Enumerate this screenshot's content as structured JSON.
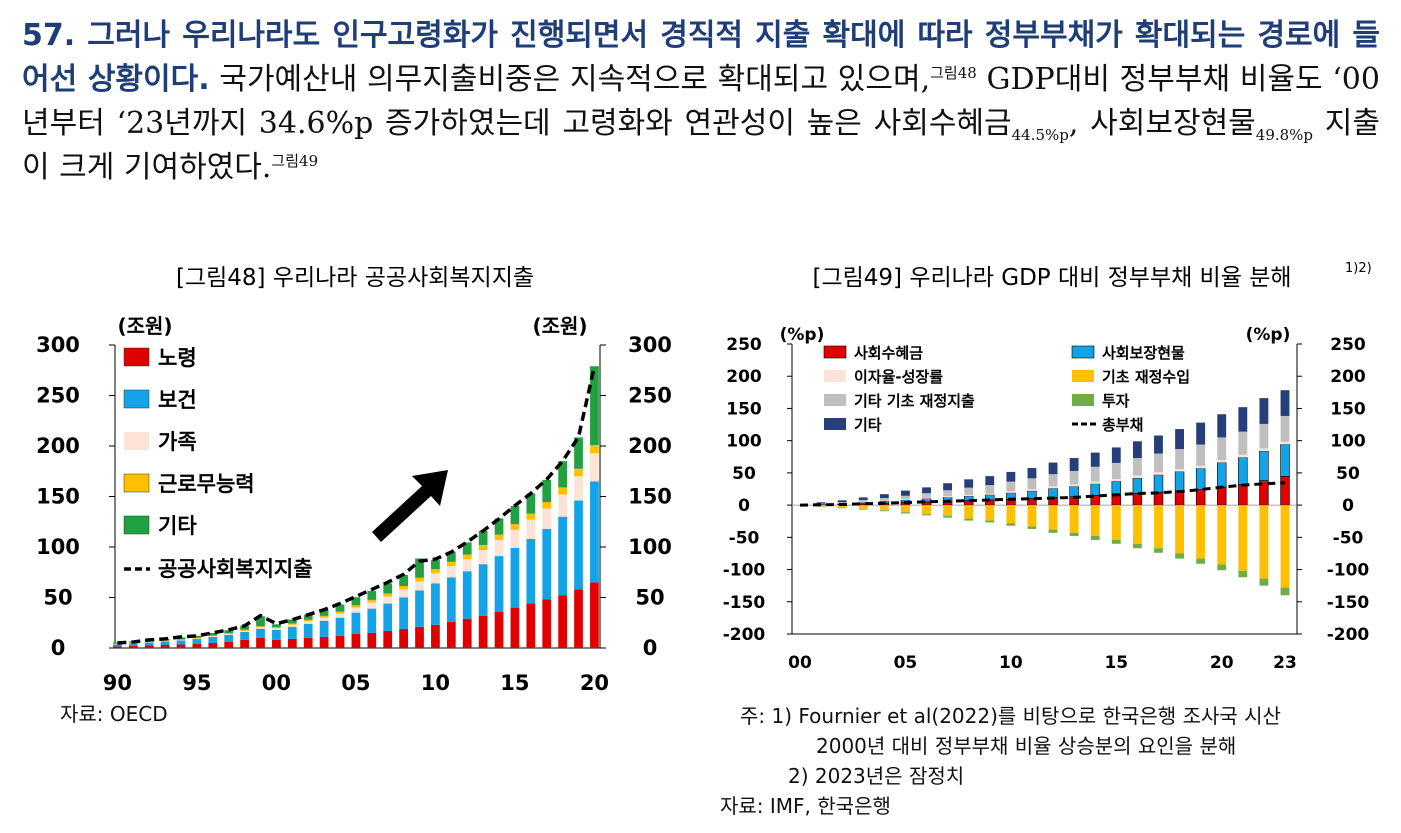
{
  "paragraph": {
    "lead": "57. 그러나 우리나라도 인구고령화가 진행되면서 경직적 지출 확대에 따라 정부부채가 확대되는 경로에 들어선 상황이다.",
    "t1": " 국가예산내 의무지출비중은 지속적으로 확대되고 있으며,",
    "ref48": "그림48",
    "t2": " GDP대비 정부부채 비율도 ‘00년부터 ‘23년까지 34.6%p 증가하였는데 고령화와 연관성이 높은 사회수혜금",
    "sub1": "44.5%p",
    "t3": ", 사회보장현물",
    "sub2": "49.8%p",
    "t4": " 지출이 크게 기여하였다.",
    "ref49": "그림49"
  },
  "colors": {
    "red": "#e00000",
    "blue": "#14a3e6",
    "cream": "#fbe3d6",
    "yellow": "#fec000",
    "green": "#23a142",
    "gray": "#bfbfbf",
    "navy": "#263f7a",
    "olive": "#70ad47",
    "lead": "#1f3e78"
  },
  "chart48_text": {
    "source": "자료: OECD"
  },
  "chart49_text": {
    "source": "자료: IMF, 한국은행",
    "note1": "주: 1) Fournier et al(2022)를 비탕으로 한국은행 조사국 시산",
    "note1b": "2000년 대비 정부부채 비율 상승분의 요인을 분해",
    "note2": "2) 2023년은 잠정치"
  },
  "chart_data": [
    {
      "type": "bar",
      "stacked": true,
      "title": "[그림48] 우리나라 공공사회복지지출",
      "unit_left": "(조원)",
      "unit_right": "(조원)",
      "ylim": [
        0,
        300
      ],
      "yticks": [
        0,
        50,
        100,
        150,
        200,
        250,
        300
      ],
      "x": [
        1990,
        1991,
        1992,
        1993,
        1994,
        1995,
        1996,
        1997,
        1998,
        1999,
        2000,
        2001,
        2002,
        2003,
        2004,
        2005,
        2006,
        2007,
        2008,
        2009,
        2010,
        2011,
        2012,
        2013,
        2014,
        2015,
        2016,
        2017,
        2018,
        2019,
        2020
      ],
      "xtick_labels": [
        "90",
        "95",
        "00",
        "05",
        "10",
        "15",
        "20"
      ],
      "xtick_years": [
        1990,
        1995,
        2000,
        2005,
        2010,
        2015,
        2020
      ],
      "series": [
        {
          "name": "노령",
          "color": "red",
          "values": [
            1.5,
            2,
            2.5,
            3,
            3.5,
            4,
            5,
            6,
            8,
            10,
            8,
            9,
            10,
            11,
            12,
            14,
            15,
            17,
            19,
            21,
            23,
            26,
            29,
            32,
            36,
            40,
            44,
            48,
            52,
            58,
            65
          ]
        },
        {
          "name": "보건",
          "color": "blue",
          "values": [
            2,
            2.5,
            3,
            3.5,
            4,
            5,
            6,
            7,
            8,
            9,
            10,
            12,
            14,
            16,
            18,
            21,
            24,
            27,
            31,
            36,
            41,
            44,
            47,
            51,
            55,
            59,
            64,
            70,
            78,
            88,
            100
          ]
        },
        {
          "name": "가족",
          "color": "cream",
          "values": [
            0.5,
            0.5,
            0.5,
            0.5,
            0.5,
            0.5,
            0.7,
            0.8,
            1,
            1.5,
            1.5,
            2,
            2.5,
            3,
            4,
            5,
            6,
            7,
            8,
            9,
            10,
            11,
            12,
            14,
            16,
            18,
            19,
            20,
            22,
            24,
            28
          ]
        },
        {
          "name": "근로무능력",
          "color": "yellow",
          "values": [
            0.5,
            0.5,
            0.5,
            0.5,
            0.5,
            0.6,
            0.7,
            0.8,
            1,
            1,
            1,
            1.2,
            1.5,
            1.8,
            2,
            2.3,
            2.6,
            3,
            3.3,
            3.6,
            4,
            4.3,
            4.6,
            5,
            5.3,
            5.6,
            6,
            6.5,
            7,
            7.5,
            8
          ]
        },
        {
          "name": "기타",
          "color": "green",
          "values": [
            1,
            1,
            1.5,
            1.5,
            2,
            2,
            2.5,
            3,
            4,
            10,
            3,
            4,
            5,
            6,
            7,
            8,
            9,
            10,
            11,
            19,
            9,
            10,
            12,
            14,
            16,
            18,
            20,
            22,
            26,
            31,
            78
          ]
        }
      ],
      "line": {
        "name": "공공사회복지지출",
        "values": [
          5,
          6,
          8,
          9,
          11,
          12,
          15,
          18,
          22,
          32,
          24,
          28,
          33,
          38,
          44,
          51,
          58,
          65,
          73,
          86,
          88,
          95,
          105,
          116,
          128,
          141,
          153,
          167,
          185,
          209,
          279
        ]
      },
      "annotation": "arrow"
    },
    {
      "type": "bar",
      "stacked": true,
      "title": "[그림49] 우리나라 GDP 대비 정부부채 비율 분해",
      "title_sup": "1)2)",
      "unit_left": "(%p)",
      "unit_right": "(%p)",
      "ylim": [
        -200,
        250
      ],
      "yticks": [
        -200,
        -150,
        -100,
        -50,
        0,
        50,
        100,
        150,
        200,
        250
      ],
      "x": [
        2000,
        2001,
        2002,
        2003,
        2004,
        2005,
        2006,
        2007,
        2008,
        2009,
        2010,
        2011,
        2012,
        2013,
        2014,
        2015,
        2016,
        2017,
        2018,
        2019,
        2020,
        2021,
        2022,
        2023
      ],
      "xtick_labels": [
        "00",
        "05",
        "10",
        "15",
        "20",
        "23"
      ],
      "xtick_years": [
        2000,
        2005,
        2010,
        2015,
        2020,
        2023
      ],
      "series": [
        {
          "name": "사회수혜금",
          "color": "red",
          "values": [
            0,
            0.5,
            1,
            2,
            3,
            4,
            5,
            6,
            7,
            8,
            9,
            10,
            12,
            13,
            15,
            16,
            18,
            20,
            22,
            24,
            28,
            32,
            38,
            44.5
          ]
        },
        {
          "name": "사회보장현물",
          "color": "blue",
          "values": [
            0,
            0.5,
            1,
            2,
            3,
            4,
            5,
            6,
            7,
            8,
            10,
            12,
            14,
            16,
            18,
            21,
            24,
            27,
            30,
            33,
            38,
            42,
            46,
            49.8
          ]
        },
        {
          "name": "이자율-성장률",
          "color": "cream",
          "values": [
            0,
            0.3,
            0.5,
            1,
            1,
            1.5,
            1.5,
            2,
            2,
            2,
            2.5,
            2.5,
            3,
            3,
            3.5,
            3.5,
            4,
            4,
            4,
            4,
            4,
            4,
            4,
            4
          ]
        },
        {
          "name": "기초 재정수입",
          "color": "yellow",
          "values": [
            0,
            -2,
            -4,
            -6,
            -8,
            -11,
            -14,
            -17,
            -21,
            -24,
            -28,
            -33,
            -38,
            -43,
            -48,
            -54,
            -60,
            -67,
            -75,
            -83,
            -92,
            -102,
            -114,
            -128
          ]
        },
        {
          "name": "기타 기초 재정지출",
          "color": "gray",
          "values": [
            0,
            1,
            2,
            3,
            4,
            5,
            7,
            9,
            11,
            13,
            15,
            17,
            19,
            21,
            23,
            25,
            27,
            29,
            31,
            33,
            35,
            36,
            38,
            40
          ]
        },
        {
          "name": "투자",
          "color": "olive",
          "values": [
            0,
            -0.5,
            -1,
            -1,
            -1.5,
            -2,
            -2,
            -2.5,
            -3,
            -3,
            -4,
            -4,
            -5,
            -5,
            -6,
            -6,
            -7,
            -7,
            -8,
            -8,
            -9,
            -10,
            -11,
            -12
          ]
        },
        {
          "name": "기타",
          "color": "navy",
          "values": [
            0,
            2,
            3,
            4,
            6,
            8,
            9,
            11,
            13,
            14,
            15,
            16,
            18,
            20,
            22,
            24,
            26,
            28,
            31,
            34,
            36,
            38,
            40,
            40
          ]
        }
      ],
      "line": {
        "name": "총부채",
        "values": [
          0,
          0.5,
          1,
          2,
          3,
          4,
          5,
          6,
          7,
          8,
          9,
          10,
          11,
          12,
          14,
          16,
          18,
          19,
          21,
          24,
          28,
          31,
          33,
          34.6
        ]
      }
    }
  ]
}
